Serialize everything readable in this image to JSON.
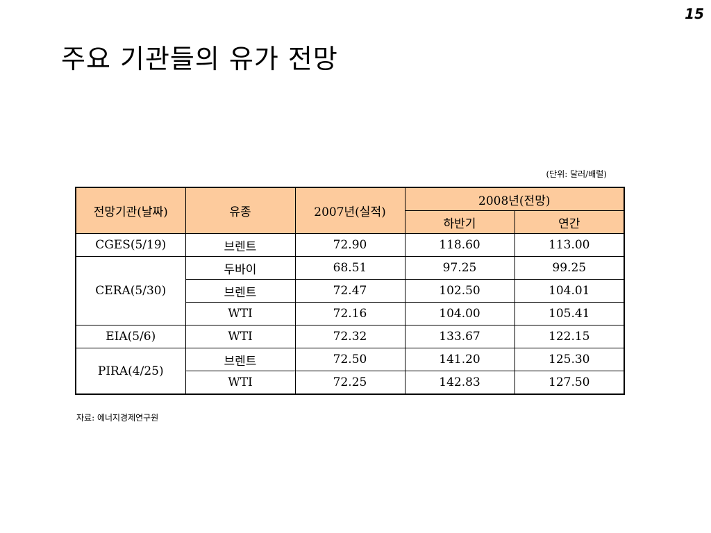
{
  "page_number": "15",
  "title": "주요 기관들의 유가 전망",
  "unit_note": "(단위: 달러/배럴)",
  "table": {
    "headers": {
      "agency": "전망기관(날짜)",
      "crude": "유종",
      "y2007": "2007년(실적)",
      "y2008": "2008년(전망)",
      "h2": "하반기",
      "annual": "연간"
    },
    "groups": [
      {
        "agency": "CGES(5/19)",
        "rows": [
          {
            "crude": "브렌트",
            "y2007": "72.90",
            "h2": "118.60",
            "annual": "113.00"
          }
        ]
      },
      {
        "agency": "CERA(5/30)",
        "rows": [
          {
            "crude": "두바이",
            "y2007": "68.51",
            "h2": "97.25",
            "annual": "99.25"
          },
          {
            "crude": "브렌트",
            "y2007": "72.47",
            "h2": "102.50",
            "annual": "104.01"
          },
          {
            "crude": "WTI",
            "y2007": "72.16",
            "h2": "104.00",
            "annual": "105.41"
          }
        ]
      },
      {
        "agency": "EIA(5/6)",
        "rows": [
          {
            "crude": "WTI",
            "y2007": "72.32",
            "h2": "133.67",
            "annual": "122.15"
          }
        ]
      },
      {
        "agency": "PIRA(4/25)",
        "rows": [
          {
            "crude": "브렌트",
            "y2007": "72.50",
            "h2": "141.20",
            "annual": "125.30"
          },
          {
            "crude": "WTI",
            "y2007": "72.25",
            "h2": "142.83",
            "annual": "127.50"
          }
        ]
      }
    ]
  },
  "source_note": "자료: 에너지경제연구원",
  "colors": {
    "header_bg": "#fdcb9d",
    "border": "#000000"
  }
}
